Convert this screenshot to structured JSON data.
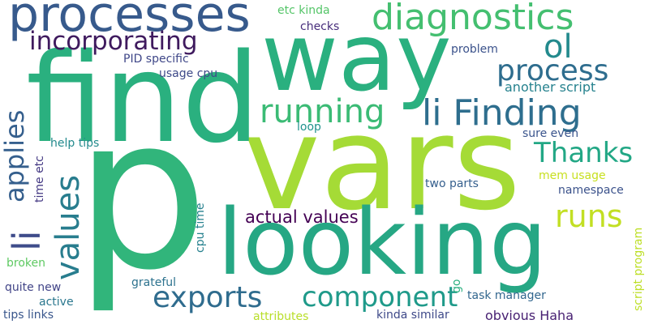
{
  "wordcloud": {
    "words": [
      {
        "text": "p",
        "color": "#31b57b"
      },
      {
        "text": "vars",
        "color": "#a5db36"
      },
      {
        "text": "find",
        "color": "#2ab07f"
      },
      {
        "text": "way",
        "color": "#2ab07f"
      },
      {
        "text": "looking",
        "color": "#26a784"
      },
      {
        "text": "processes",
        "color": "#375a8c"
      },
      {
        "text": "diagnostics",
        "color": "#44bf70"
      },
      {
        "text": "incorporating",
        "color": "#3f1a5e"
      },
      {
        "text": "ol",
        "color": "#238a8d"
      },
      {
        "text": "process",
        "color": "#2e6d8e"
      },
      {
        "text": "running",
        "color": "#3bbb75"
      },
      {
        "text": "li Finding",
        "color": "#2e6e8e"
      },
      {
        "text": "Thanks",
        "color": "#22a785"
      },
      {
        "text": "applies",
        "color": "#355f8d"
      },
      {
        "text": "li",
        "color": "#3e4c8a"
      },
      {
        "text": "values",
        "color": "#287d8e"
      },
      {
        "text": "runs",
        "color": "#c2df23"
      },
      {
        "text": "actual values",
        "color": "#440154"
      },
      {
        "text": "component",
        "color": "#1f9a8a"
      },
      {
        "text": "exports",
        "color": "#2f6c8e"
      },
      {
        "text": "etc kinda",
        "color": "#54c568"
      },
      {
        "text": "checks",
        "color": "#472d7b"
      },
      {
        "text": "problem",
        "color": "#3b528b"
      },
      {
        "text": "PID specific",
        "color": "#3f4788"
      },
      {
        "text": "usage cpu",
        "color": "#3e4a89"
      },
      {
        "text": "another script",
        "color": "#26828e"
      },
      {
        "text": "loop",
        "color": "#20928c"
      },
      {
        "text": "sure even",
        "color": "#3a548c"
      },
      {
        "text": "help tips",
        "color": "#238a8d"
      },
      {
        "text": "time etc",
        "color": "#443983"
      },
      {
        "text": "mem usage",
        "color": "#c8e020"
      },
      {
        "text": "two parts",
        "color": "#355f8d"
      },
      {
        "text": "namespace",
        "color": "#3b528b"
      },
      {
        "text": "cpu time",
        "color": "#26818e"
      },
      {
        "text": "script program",
        "color": "#bddf26"
      },
      {
        "text": "broken",
        "color": "#5ec962"
      },
      {
        "text": "go",
        "color": "#29af7f"
      },
      {
        "text": "grateful",
        "color": "#2c728e"
      },
      {
        "text": "quite new",
        "color": "#414487"
      },
      {
        "text": "task manager",
        "color": "#31668e"
      },
      {
        "text": "active",
        "color": "#2a778e"
      },
      {
        "text": "obvious Haha",
        "color": "#482173"
      },
      {
        "text": "tips links",
        "color": "#39568c"
      },
      {
        "text": "attributes",
        "color": "#b8de29"
      },
      {
        "text": "kinda similar",
        "color": "#3e4989"
      }
    ]
  }
}
